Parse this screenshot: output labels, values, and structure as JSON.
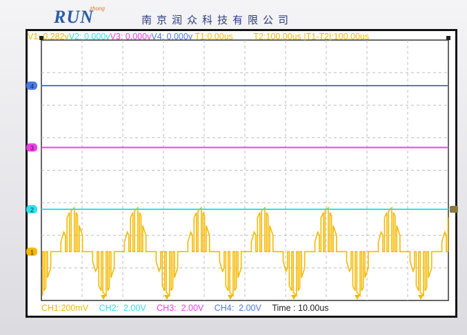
{
  "header": {
    "logo_text": "RUN",
    "logo_subtext": "zhong",
    "company": "南京润众科技有限公司"
  },
  "readout": {
    "v1": "V1: 0.282v",
    "v2": "V2: 0.000v",
    "v3": "V3: 0.000v",
    "v4": "V4: 0.000v",
    "t1": "T1:0.00us",
    "t2": "T2:100.00us",
    "dt": "|T1-T2|:100.00us"
  },
  "footer": {
    "ch1": "CH1:200mV",
    "ch2": "CH2:  2.00V",
    "ch3": "CH3:  2.00V",
    "ch4": "CH4:  2.00V",
    "time": "Time : 10.00us"
  },
  "colors": {
    "ch1": "#f5b800",
    "ch2": "#2ee0f0",
    "ch3": "#f03ce8",
    "ch4": "#4a78e8",
    "grid": "#bbbbbb",
    "time_text": "#222222"
  },
  "chart_data": {
    "type": "line",
    "xlim_us": [
      0,
      100
    ],
    "x_divisions": 10,
    "y_divisions": 8,
    "grid": true,
    "channel_markers": [
      "1",
      "2",
      "3",
      "4"
    ],
    "series": [
      {
        "name": "CH1",
        "scale": "200mV/div",
        "marker": "1",
        "ground_div_from_top": 6.5,
        "period_us": 15.6,
        "phase_us": 11.3,
        "period_points_mV": [
          [
            0,
            0
          ],
          [
            0.5,
            0
          ],
          [
            0.5,
            60
          ],
          [
            1.2,
            120
          ],
          [
            1.6,
            100
          ],
          [
            1.6,
            0
          ],
          [
            2.0,
            0
          ],
          [
            2.0,
            210
          ],
          [
            2.6,
            240
          ],
          [
            2.6,
            0
          ],
          [
            3.0,
            0
          ],
          [
            3.0,
            250
          ],
          [
            3.8,
            270
          ],
          [
            3.8,
            0
          ],
          [
            4.2,
            0
          ],
          [
            4.2,
            240
          ],
          [
            4.6,
            220
          ],
          [
            4.6,
            0
          ],
          [
            5.0,
            0
          ],
          [
            5.0,
            160
          ],
          [
            5.8,
            100
          ],
          [
            5.8,
            0
          ],
          [
            7.8,
            0
          ],
          [
            8.3,
            0
          ],
          [
            8.3,
            -60
          ],
          [
            9.0,
            -120
          ],
          [
            9.4,
            -100
          ],
          [
            9.4,
            0
          ],
          [
            9.8,
            0
          ],
          [
            9.8,
            -210
          ],
          [
            10.4,
            -240
          ],
          [
            10.4,
            0
          ],
          [
            10.8,
            0
          ],
          [
            10.8,
            -250
          ],
          [
            11.6,
            -270
          ],
          [
            11.6,
            0
          ],
          [
            12.0,
            0
          ],
          [
            12.0,
            -240
          ],
          [
            12.4,
            -220
          ],
          [
            12.4,
            0
          ],
          [
            12.8,
            0
          ],
          [
            12.8,
            -160
          ],
          [
            13.6,
            -100
          ],
          [
            13.6,
            0
          ],
          [
            15.6,
            0
          ]
        ]
      },
      {
        "name": "CH2",
        "scale": "2.00V/div",
        "marker": "2",
        "ground_div_from_top": 5.2,
        "value_V": 0
      },
      {
        "name": "CH3",
        "scale": "2.00V/div",
        "marker": "3",
        "ground_div_from_top": 3.3,
        "value_V": 0
      },
      {
        "name": "CH4",
        "scale": "2.00V/div",
        "marker": "4",
        "ground_div_from_top": 1.4,
        "value_V": 0
      }
    ]
  }
}
